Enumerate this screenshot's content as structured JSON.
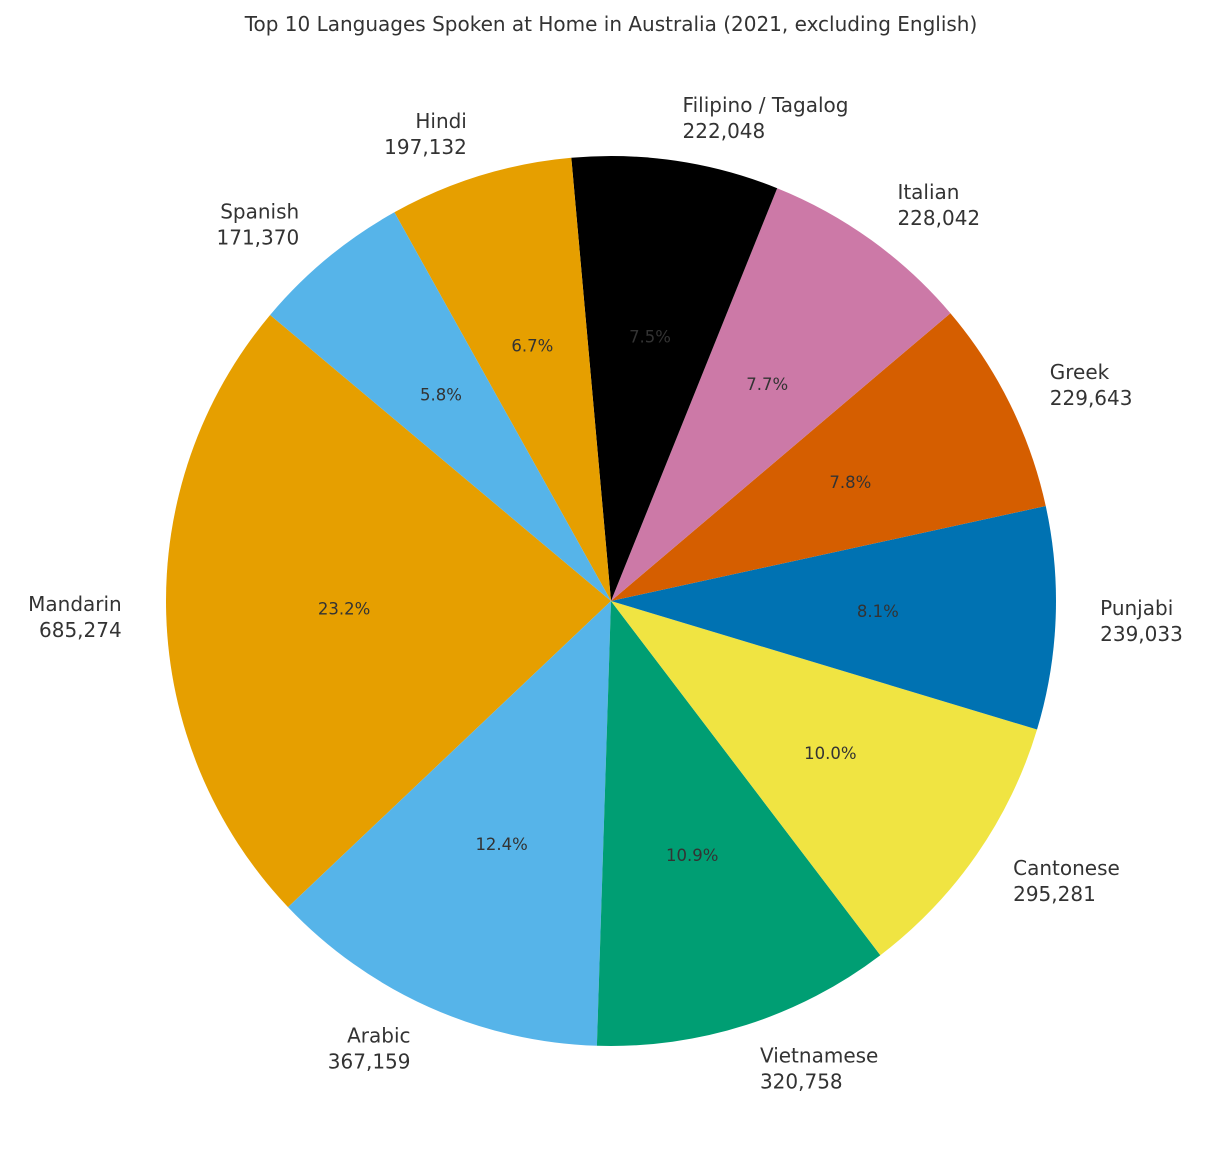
{
  "chart_data": {
    "type": "pie",
    "title": "Top 10 Languages Spoken at Home in Australia (2021, excluding English)",
    "start_angle_deg": 140,
    "direction": "counterclockwise",
    "center": [
      611,
      601
    ],
    "radius": 445,
    "label_radius_factor": 1.1,
    "pct_radius_factor": 0.6,
    "categories": [
      "Mandarin",
      "Arabic",
      "Vietnamese",
      "Cantonese",
      "Punjabi",
      "Greek",
      "Italian",
      "Filipino / Tagalog",
      "Hindi",
      "Spanish"
    ],
    "values": [
      685274,
      367159,
      320758,
      295281,
      239033,
      229643,
      228042,
      222048,
      197132,
      171370
    ],
    "value_labels": [
      "685,274",
      "367,159",
      "320,758",
      "295,281",
      "239,033",
      "229,643",
      "228,042",
      "222,048",
      "197,132",
      "171,370"
    ],
    "percent_labels": [
      "23.2%",
      "12.4%",
      "10.9%",
      "10.0%",
      "8.1%",
      "7.8%",
      "7.7%",
      "7.5%",
      "6.7%",
      "5.8%"
    ],
    "colors": [
      "#E69F00",
      "#56B4E9",
      "#009E73",
      "#F0E442",
      "#0072B2",
      "#D55E00",
      "#CC79A7",
      "#000000",
      "#E69F00",
      "#56B4E9"
    ],
    "xlabel": "",
    "ylabel": "",
    "legend": "none"
  }
}
